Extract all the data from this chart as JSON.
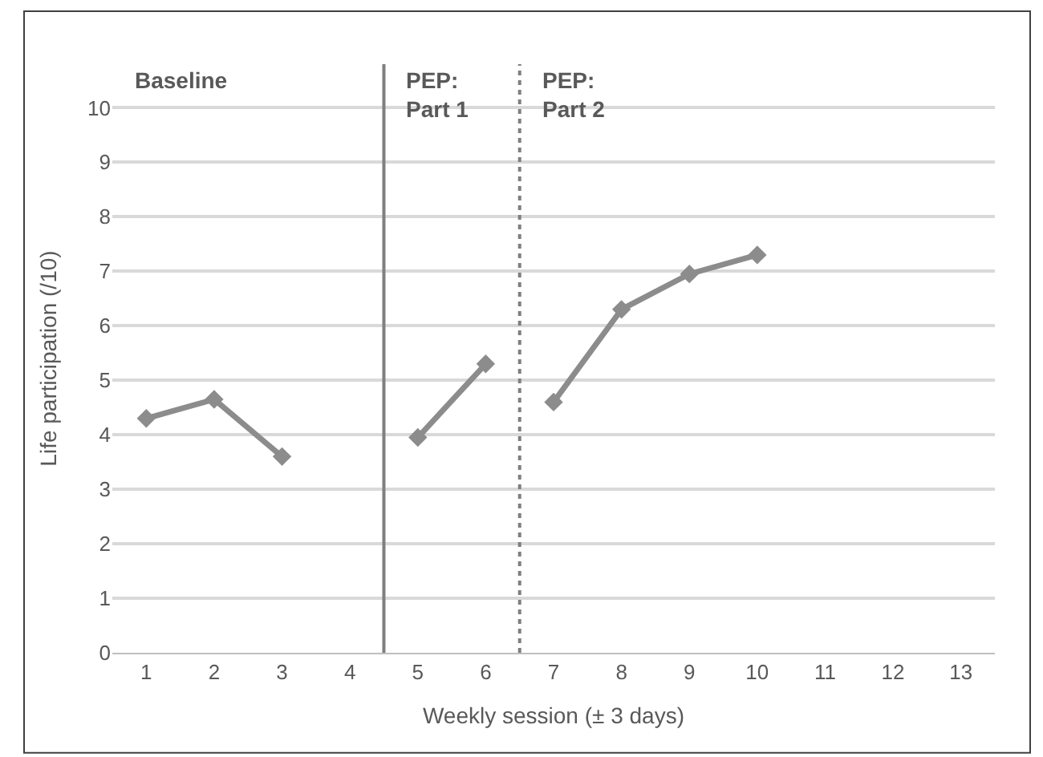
{
  "chart_data": {
    "type": "line",
    "xlabel": "Weekly session (± 3 days)",
    "ylabel": "Life participation (/10)",
    "series": [
      {
        "color": "#8c8c8c",
        "x": [
          1,
          2,
          3
        ],
        "values": [
          4.3,
          4.65,
          3.6
        ]
      },
      {
        "color": "#8c8c8c",
        "x": [
          5,
          6
        ],
        "values": [
          3.95,
          5.3
        ]
      },
      {
        "color": "#8c8c8c",
        "x": [
          7,
          8,
          9,
          10
        ],
        "values": [
          4.6,
          6.3,
          6.95,
          7.3
        ]
      }
    ],
    "xlim": [
      0.5,
      13.5
    ],
    "xticks": [
      1,
      2,
      3,
      4,
      5,
      6,
      7,
      8,
      9,
      10,
      11,
      12,
      13
    ],
    "ylim": [
      0,
      10.8
    ],
    "yticks": [
      0,
      1,
      2,
      3,
      4,
      5,
      6,
      7,
      8,
      9,
      10
    ],
    "grid": "y",
    "marker": "diamond",
    "line_style": "solid",
    "ref_lines": [
      {
        "axis": "x",
        "value": 4.5,
        "label": "PEP:\nPart 1",
        "color": "#7f7f7f",
        "line_style": "solid"
      },
      {
        "axis": "x",
        "value": 6.5,
        "label": "PEP:\nPart 2",
        "color": "#7f7f7f",
        "line_style": "dotted"
      }
    ],
    "annotations": [
      "Baseline"
    ]
  }
}
